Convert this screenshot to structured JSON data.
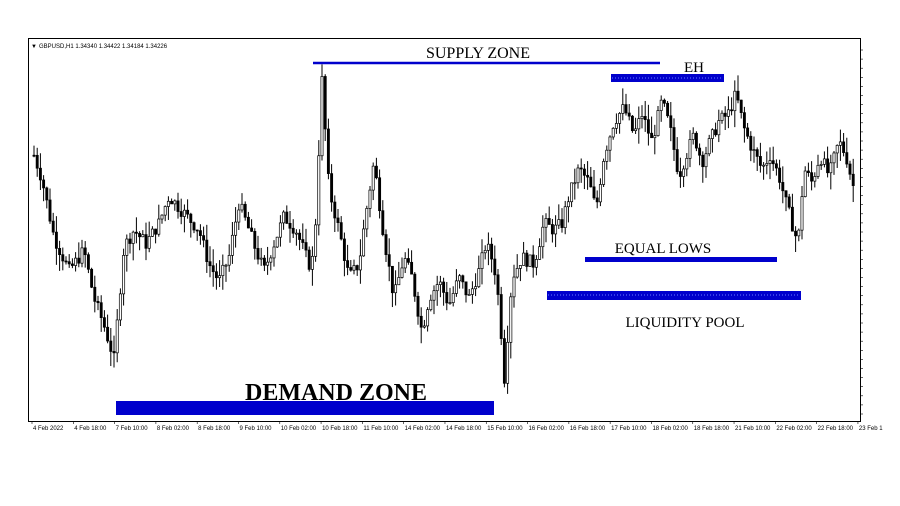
{
  "chart_header": {
    "symbol_info": "GBPUSD,H1  1.34340 1.34422 1.34184 1.34226"
  },
  "chart_data": {
    "type": "candlestick",
    "symbol": "GBPUSD",
    "timeframe": "H1",
    "ohlc_header": {
      "open": 1.3434,
      "high": 1.34422,
      "low": 1.34184,
      "close": 1.34226
    },
    "x_ticks": [
      "4 Feb 2022",
      "4 Feb 18:00",
      "7 Feb 10:00",
      "8 Feb 02:00",
      "8 Feb 18:00",
      "9 Feb 10:00",
      "10 Feb 02:00",
      "10 Feb 18:00",
      "11 Feb 10:00",
      "14 Feb 02:00",
      "14 Feb 18:00",
      "15 Feb 10:00",
      "16 Feb 02:00",
      "16 Feb 18:00",
      "17 Feb 10:00",
      "18 Feb 02:00",
      "18 Feb 18:00",
      "21 Feb 10:00",
      "22 Feb 02:00",
      "22 Feb 18:00",
      "23 Feb 1"
    ],
    "grid": false,
    "price_path_relative": [
      [
        0,
        0.72
      ],
      [
        8,
        0.65
      ],
      [
        20,
        0.48
      ],
      [
        35,
        0.38
      ],
      [
        50,
        0.44
      ],
      [
        60,
        0.3
      ],
      [
        70,
        0.22
      ],
      [
        80,
        0.12
      ],
      [
        90,
        0.45
      ],
      [
        100,
        0.5
      ],
      [
        112,
        0.46
      ],
      [
        125,
        0.52
      ],
      [
        135,
        0.6
      ],
      [
        150,
        0.55
      ],
      [
        165,
        0.5
      ],
      [
        175,
        0.4
      ],
      [
        185,
        0.35
      ],
      [
        195,
        0.42
      ],
      [
        205,
        0.58
      ],
      [
        215,
        0.5
      ],
      [
        222,
        0.44
      ],
      [
        230,
        0.38
      ],
      [
        240,
        0.46
      ],
      [
        250,
        0.54
      ],
      [
        262,
        0.5
      ],
      [
        275,
        0.4
      ],
      [
        280,
        0.42
      ],
      [
        288,
        0.94
      ],
      [
        295,
        0.62
      ],
      [
        305,
        0.5
      ],
      [
        315,
        0.36
      ],
      [
        325,
        0.4
      ],
      [
        332,
        0.55
      ],
      [
        340,
        0.7
      ],
      [
        350,
        0.48
      ],
      [
        360,
        0.3
      ],
      [
        370,
        0.42
      ],
      [
        378,
        0.36
      ],
      [
        388,
        0.2
      ],
      [
        395,
        0.3
      ],
      [
        405,
        0.35
      ],
      [
        415,
        0.28
      ],
      [
        425,
        0.36
      ],
      [
        435,
        0.3
      ],
      [
        445,
        0.38
      ],
      [
        452,
        0.46
      ],
      [
        460,
        0.4
      ],
      [
        466,
        0.26
      ],
      [
        470,
        0.05
      ],
      [
        478,
        0.36
      ],
      [
        488,
        0.42
      ],
      [
        500,
        0.4
      ],
      [
        510,
        0.52
      ],
      [
        520,
        0.5
      ],
      [
        528,
        0.52
      ],
      [
        535,
        0.6
      ],
      [
        545,
        0.68
      ],
      [
        555,
        0.64
      ],
      [
        562,
        0.56
      ],
      [
        570,
        0.72
      ],
      [
        580,
        0.82
      ],
      [
        590,
        0.86
      ],
      [
        600,
        0.78
      ],
      [
        608,
        0.84
      ],
      [
        618,
        0.76
      ],
      [
        628,
        0.88
      ],
      [
        636,
        0.8
      ],
      [
        645,
        0.66
      ],
      [
        652,
        0.72
      ],
      [
        660,
        0.78
      ],
      [
        668,
        0.7
      ],
      [
        676,
        0.76
      ],
      [
        685,
        0.82
      ],
      [
        694,
        0.84
      ],
      [
        702,
        0.9
      ],
      [
        710,
        0.8
      ],
      [
        718,
        0.74
      ],
      [
        728,
        0.68
      ],
      [
        736,
        0.72
      ],
      [
        745,
        0.66
      ],
      [
        752,
        0.58
      ],
      [
        758,
        0.52
      ],
      [
        764,
        0.46
      ],
      [
        770,
        0.68
      ],
      [
        778,
        0.64
      ],
      [
        786,
        0.72
      ],
      [
        795,
        0.66
      ],
      [
        805,
        0.76
      ],
      [
        812,
        0.72
      ],
      [
        820,
        0.62
      ],
      [
        827,
        0.54
      ]
    ]
  },
  "annotations": {
    "supply_zone": "SUPPLY ZONE",
    "eh": "EH",
    "equal_lows": "EQUAL LOWS",
    "liquidity_pool": "LIQUIDITY  POOL",
    "demand_zone": "DEMAND ZONE"
  },
  "colors": {
    "zone_line": "#0000cc",
    "candle": "#000000",
    "background": "#ffffff"
  }
}
